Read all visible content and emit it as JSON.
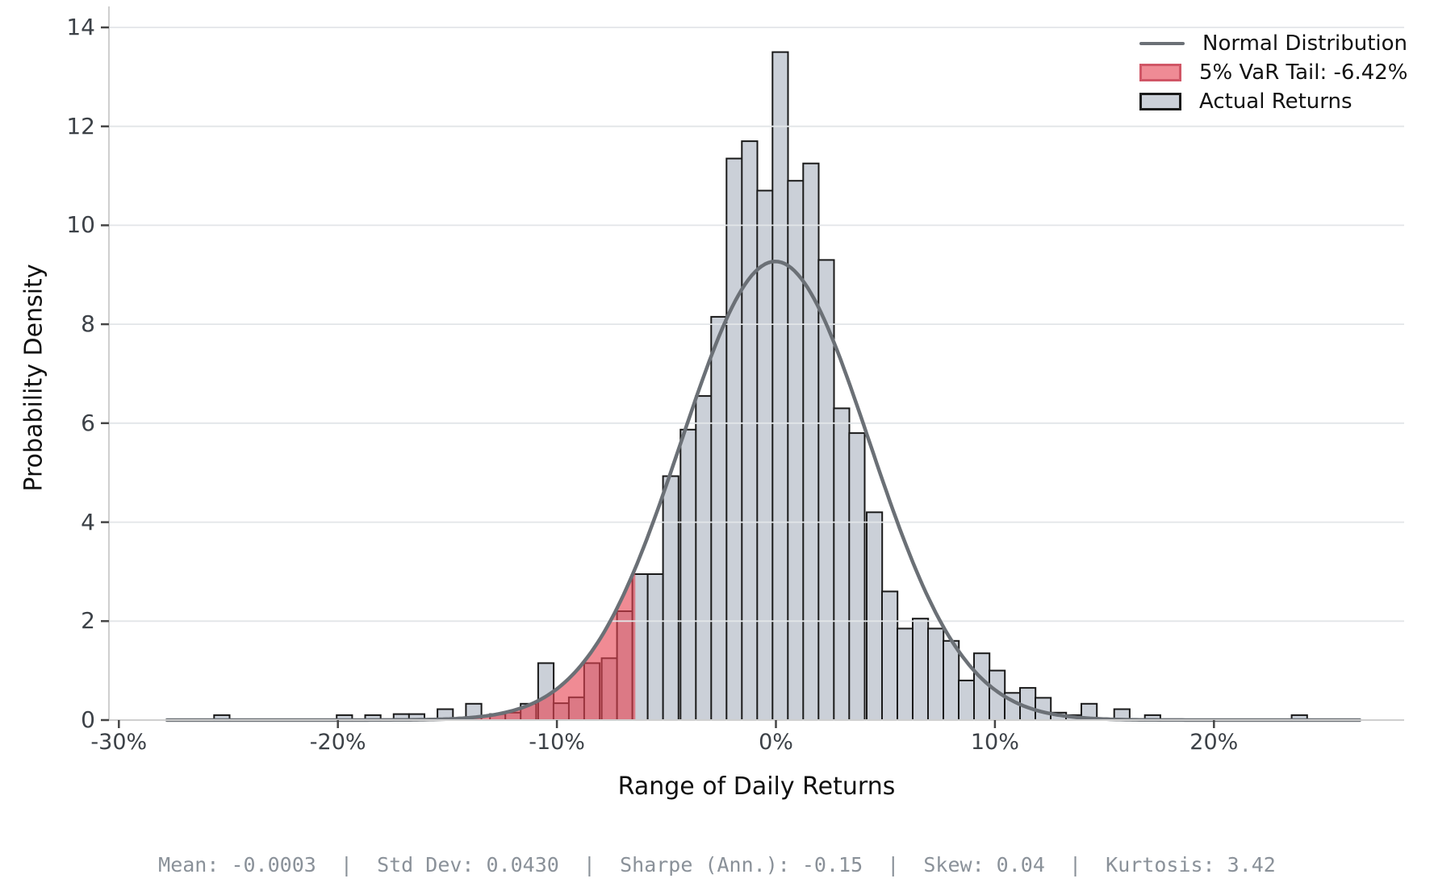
{
  "legend": {
    "items": [
      {
        "label": "Normal Distribution",
        "type": "line",
        "color": "#6b7076"
      },
      {
        "label": "5% VaR Tail: -6.42%",
        "type": "patch",
        "fill": "#ef8b95",
        "edge": "#d05666"
      },
      {
        "label": "Actual Returns",
        "type": "patch",
        "fill": "#cbd0d8",
        "edge": "#1a1a1a"
      }
    ]
  },
  "footer": {
    "text": "Mean: -0.0003  |  Std Dev: 0.0430  |  Sharpe (Ann.): -0.15  |  Skew: 0.04  |  Kurtosis: 3.42"
  },
  "colors": {
    "background": "#ffffff",
    "bar_fill": "#cbd0d8",
    "bar_edge": "#1a1a1a",
    "curve": "#6b7076",
    "var_fill": "#e74452",
    "var_fill_opacity": 0.62,
    "grid": "#e2e5e8",
    "spine": "#cfcfcf",
    "tick_mark": "#454545",
    "tick_label": "#3c4147",
    "axis_label": "#101010",
    "footer_text": "#8a9199"
  },
  "chart_data": {
    "type": "bar",
    "subtype": "histogram-with-normal-overlay",
    "title": "",
    "xlabel": "Range of Daily Returns",
    "ylabel": "Probability Density",
    "xlim_pct": [
      -30.5,
      28.7
    ],
    "ylim": [
      0,
      14.4
    ],
    "grid": "on",
    "legend_position": "upper-right",
    "x_tick_values": [
      -30,
      -20,
      -10,
      0,
      10,
      20
    ],
    "x_tick_labels": [
      "-30%",
      "-20%",
      "-10%",
      "0%",
      "10%",
      "20%"
    ],
    "y_tick_values": [
      0,
      2,
      4,
      6,
      8,
      10,
      12,
      14
    ],
    "bin_width_pct": 0.707,
    "bars_series_name": "Actual Returns",
    "bars": [
      [
        -25.3,
        0.1
      ],
      [
        -19.7,
        0.1
      ],
      [
        -18.4,
        0.1
      ],
      [
        -17.1,
        0.12
      ],
      [
        -16.4,
        0.12
      ],
      [
        -15.1,
        0.22
      ],
      [
        -13.8,
        0.33
      ],
      [
        -12.7,
        0.12
      ],
      [
        -12.0,
        0.15
      ],
      [
        -11.3,
        0.33
      ],
      [
        -10.5,
        1.15
      ],
      [
        -9.8,
        0.34
      ],
      [
        -9.1,
        0.46
      ],
      [
        -8.4,
        1.15
      ],
      [
        -7.6,
        1.25
      ],
      [
        -6.9,
        2.2
      ],
      [
        -6.2,
        2.95
      ],
      [
        -5.5,
        2.95
      ],
      [
        -4.8,
        4.93
      ],
      [
        -4.0,
        5.87
      ],
      [
        -3.3,
        6.55
      ],
      [
        -2.6,
        8.15
      ],
      [
        -1.9,
        11.35
      ],
      [
        -1.2,
        11.7
      ],
      [
        -0.5,
        10.7
      ],
      [
        0.2,
        13.5
      ],
      [
        0.9,
        10.9
      ],
      [
        1.6,
        11.25
      ],
      [
        2.3,
        9.3
      ],
      [
        3.0,
        6.3
      ],
      [
        3.7,
        5.8
      ],
      [
        4.5,
        4.2
      ],
      [
        5.2,
        2.6
      ],
      [
        5.9,
        1.85
      ],
      [
        6.6,
        2.05
      ],
      [
        7.3,
        1.85
      ],
      [
        8.0,
        1.6
      ],
      [
        8.7,
        0.8
      ],
      [
        9.4,
        1.35
      ],
      [
        10.1,
        1.0
      ],
      [
        10.8,
        0.55
      ],
      [
        11.5,
        0.65
      ],
      [
        12.2,
        0.45
      ],
      [
        12.9,
        0.15
      ],
      [
        13.6,
        0.1
      ],
      [
        14.3,
        0.33
      ],
      [
        15.8,
        0.22
      ],
      [
        17.2,
        0.1
      ],
      [
        23.9,
        0.1
      ]
    ],
    "normal_curve": {
      "name": "Normal Distribution",
      "mean_pct": -0.03,
      "sigma_pct": 4.3,
      "peak_density": 9.27,
      "range_pct": [
        -27.8,
        26.7
      ]
    },
    "var_tail": {
      "label": "5% VaR Tail: -6.42%",
      "cutoff_pct": -6.42
    },
    "stats": {
      "mean": "-0.0003",
      "std_dev": "0.0430",
      "sharpe_ann": "-0.15",
      "skew": "0.04",
      "kurtosis": "3.42"
    }
  }
}
